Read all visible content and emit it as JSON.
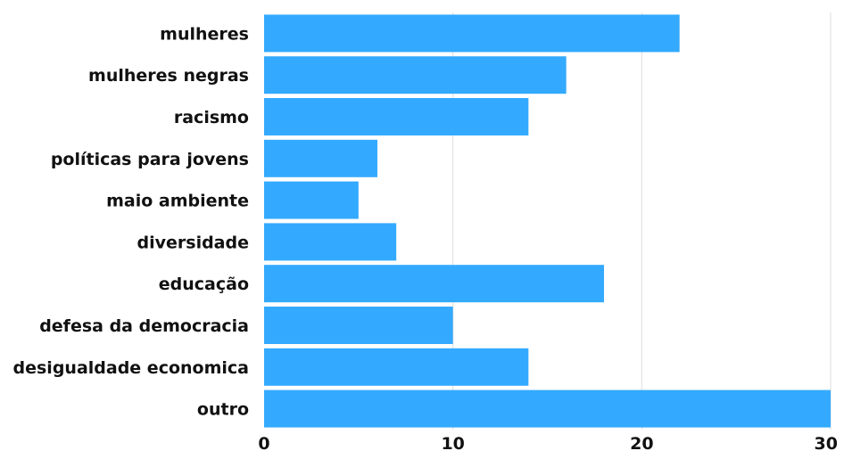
{
  "chart_data": {
    "type": "bar",
    "orientation": "horizontal",
    "categories": [
      "mulheres",
      "mulheres negras",
      "racismo",
      "políticas para jovens",
      "maio ambiente",
      "diversidade",
      "educação",
      "defesa da democracia",
      "desigualdade economica",
      "outro"
    ],
    "values": [
      22,
      16,
      14,
      6,
      5,
      7,
      18,
      10,
      14,
      30
    ],
    "title": "",
    "xlabel": "",
    "ylabel": "",
    "xlim": [
      0,
      30
    ],
    "x_ticks": [
      "0",
      "10",
      "20",
      "30"
    ],
    "grid": "vertical",
    "legend": "none",
    "colors": {
      "bar": "#33aaff",
      "grid": "#dddddd",
      "text": "#111111"
    }
  }
}
